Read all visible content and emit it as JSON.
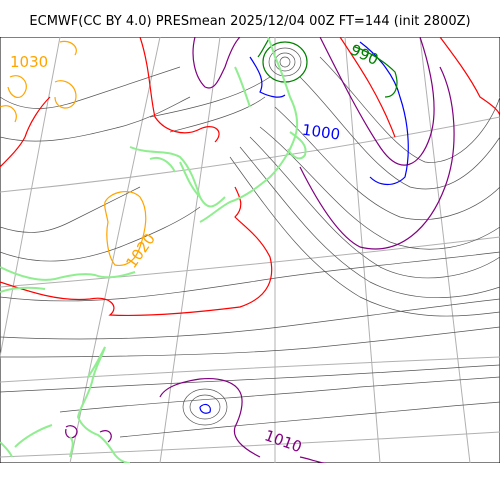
{
  "title": "ECMWF(CC BY 4.0) PRESmean 2025/12/04 00Z FT=144 (init 2800Z)",
  "colors": {
    "background": "#ffffff",
    "graticule": "#b0b0b0",
    "coastline": "#90ee90",
    "isobar_thin": "#555555",
    "isobar_1020": "#ffa500",
    "isobar_1012": "#ff0000",
    "isobar_1008": "#800080",
    "isobar_1000": "#0000ff",
    "isobar_992": "#008000"
  },
  "contour_labels": [
    {
      "text": "1030",
      "color": "#ffa500"
    },
    {
      "text": "1020",
      "color": "#ffa500"
    },
    {
      "text": "1000",
      "color": "#0000ff"
    },
    {
      "text": "990",
      "color": "#008000"
    },
    {
      "text": "1010",
      "color": "#800080"
    }
  ]
}
